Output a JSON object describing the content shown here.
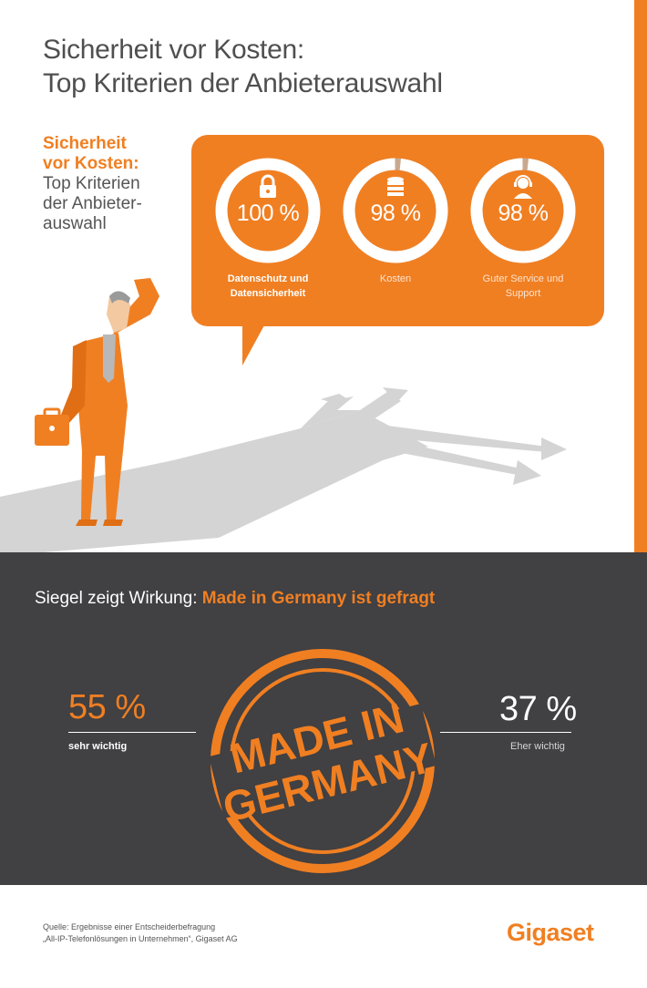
{
  "header": {
    "title_line1": "Sicherheit vor Kosten:",
    "title_line2": "Top Kriterien der Anbieterauswahl"
  },
  "side": {
    "highlight_line1": "Sicherheit",
    "highlight_line2": "vor Kosten:",
    "sub_line1": "Top Kriterien",
    "sub_line2": "der Anbieter-",
    "sub_line3": "auswahl"
  },
  "criteria": [
    {
      "icon": "lock-icon",
      "value": "100 %",
      "percent": 100,
      "label_line1": "Datenschutz und",
      "label_line2": "Datensicherheit"
    },
    {
      "icon": "coins-icon",
      "value": "98 %",
      "percent": 98,
      "label_line1": "Kosten",
      "label_line2": ""
    },
    {
      "icon": "headset-icon",
      "value": "98 %",
      "percent": 98,
      "label_line1": "Guter Service und",
      "label_line2": "Support"
    }
  ],
  "made_in_germany": {
    "headline_prefix": "Siegel zeigt Wirkung: ",
    "headline_highlight": "Made in Germany ist gefragt",
    "left_value": "55 %",
    "left_label": "sehr wichtig",
    "right_value": "37 %",
    "right_label": "Eher wichtig",
    "stamp_line1": "MADE IN",
    "stamp_line2": "GERMANY"
  },
  "footer": {
    "source_line1": "Quelle: Ergebnisse einer Entscheiderbefragung",
    "source_line2": "„All-IP-Telefonlösungen in Unternehmen“, Gigaset AG",
    "logo": "Gigaset"
  },
  "colors": {
    "accent": "#f07f22",
    "dark_panel": "#414042",
    "shadow": "#d4d4d4"
  }
}
